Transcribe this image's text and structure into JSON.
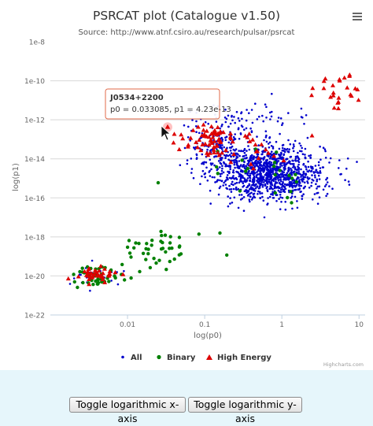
{
  "chart_data": {
    "type": "scatter",
    "title": "PSRCAT plot (Catalogue v1.50)",
    "subtitle": "Source: http://www.atnf.csiro.au/research/pulsar/psrcat",
    "xlabel": "log(p0)",
    "ylabel": "log(p1)",
    "x_scale": "log",
    "y_scale": "log",
    "xlim": [
      0.001,
      12
    ],
    "ylim": [
      1e-22,
      1e-08
    ],
    "x_ticks": [
      {
        "value": 0.01,
        "label": "0.01"
      },
      {
        "value": 0.1,
        "label": "0.1"
      },
      {
        "value": 1,
        "label": "1"
      },
      {
        "value": 10,
        "label": "10"
      }
    ],
    "y_ticks": [
      {
        "value": 1e-08,
        "label": "1e-8"
      },
      {
        "value": 1e-10,
        "label": "1e-10"
      },
      {
        "value": 1e-12,
        "label": "1e-12"
      },
      {
        "value": 1e-14,
        "label": "1e-14"
      },
      {
        "value": 1e-16,
        "label": "1e-16"
      },
      {
        "value": 1e-18,
        "label": "1e-18"
      },
      {
        "value": 1e-20,
        "label": "1e-20"
      },
      {
        "value": 1e-22,
        "label": "1e-22"
      }
    ],
    "grid": "horizontal",
    "legend_position": "bottom",
    "series": [
      {
        "name": "All",
        "color": "#0000cc",
        "marker": "circle"
      },
      {
        "name": "Binary",
        "color": "#008000",
        "marker": "circle"
      },
      {
        "name": "High Energy",
        "color": "#dd0000",
        "marker": "triangle"
      }
    ],
    "clusters": [
      {
        "series": "All",
        "cx": 0.7,
        "cy": 2e-15,
        "sx": 0.35,
        "sy": 0.7,
        "n": 1150
      },
      {
        "series": "All",
        "cx": 0.15,
        "cy": 5e-14,
        "sx": 0.2,
        "sy": 0.6,
        "n": 160
      },
      {
        "series": "All",
        "cx": 0.004,
        "cy": 1e-20,
        "sx": 0.18,
        "sy": 0.25,
        "n": 30
      },
      {
        "series": "All",
        "cx": 0.4,
        "cy": 1e-12,
        "sx": 0.4,
        "sy": 0.4,
        "n": 60
      },
      {
        "series": "Binary",
        "cx": 0.004,
        "cy": 1e-20,
        "sx": 0.18,
        "sy": 0.28,
        "n": 45
      },
      {
        "series": "Binary",
        "cx": 0.03,
        "cy": 3e-19,
        "sx": 0.3,
        "sy": 0.5,
        "n": 45
      },
      {
        "series": "Binary",
        "cx": 0.7,
        "cy": 2e-15,
        "sx": 0.35,
        "sy": 0.6,
        "n": 22
      },
      {
        "series": "High Energy",
        "cx": 0.0035,
        "cy": 1e-20,
        "sx": 0.13,
        "sy": 0.18,
        "n": 38
      },
      {
        "series": "High Energy",
        "cx": 0.12,
        "cy": 1e-13,
        "sx": 0.18,
        "sy": 0.4,
        "n": 60
      },
      {
        "series": "High Energy",
        "cx": 0.4,
        "cy": 3e-14,
        "sx": 0.25,
        "sy": 0.5,
        "n": 22
      },
      {
        "series": "High Energy",
        "cx": 5,
        "cy": 3e-11,
        "sx": 0.25,
        "sy": 0.5,
        "n": 26
      }
    ],
    "highlighted_point": {
      "name": "J0534+2200",
      "p0": 0.033085,
      "p1": 4.23e-13
    }
  },
  "tooltip": {
    "title": "J0534+2200",
    "text": "p0 = 0.033085, p1 = 4.23e-13"
  },
  "credits": "Highcharts.com",
  "buttons": {
    "toggle_x": "Toggle logarithmic x-axis",
    "toggle_y": "Toggle logarithmic y-axis"
  },
  "menu_icon": "hamburger-menu-icon"
}
